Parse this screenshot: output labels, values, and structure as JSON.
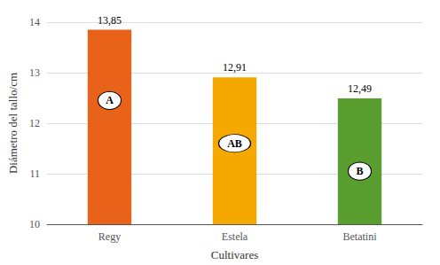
{
  "chart_data": {
    "type": "bar",
    "categories": [
      "Regy",
      "Estela",
      "Betatini"
    ],
    "values": [
      13.85,
      12.91,
      12.49
    ],
    "value_labels": [
      "13,85",
      "12,91",
      "12,49"
    ],
    "data_labels": true,
    "colors": [
      "#E8621A",
      "#F5A800",
      "#5A9E2F"
    ],
    "xlabel": "Cultivares",
    "ylabel": "Diámetro del tallo/cm",
    "ylim": [
      10,
      14
    ],
    "yticks": [
      10,
      11,
      12,
      13,
      14
    ],
    "grid": true,
    "annotations": [
      {
        "text": "A",
        "x": "Regy",
        "y": 12.45
      },
      {
        "text": "AB",
        "x": "Estela",
        "y": 11.6
      },
      {
        "text": "B",
        "x": "Betatini",
        "y": 11.05
      }
    ]
  }
}
